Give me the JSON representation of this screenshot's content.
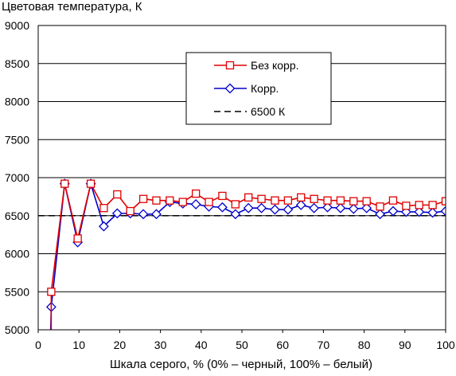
{
  "chart_data": {
    "type": "line",
    "title": "",
    "ylabel": "Цветовая температура, К",
    "xlabel": "Шкала серого, % (0% – черный, 100% – белый)",
    "xlim": [
      0,
      100
    ],
    "ylim": [
      5000,
      9000
    ],
    "x_ticks": [
      0,
      10,
      20,
      30,
      40,
      50,
      60,
      70,
      80,
      90,
      100
    ],
    "y_ticks": [
      5000,
      5500,
      6000,
      6500,
      7000,
      7500,
      8000,
      8500,
      9000
    ],
    "grid": "horizontal",
    "legend_position": "top-right",
    "reference_line": {
      "name": "6500 К",
      "value": 6500,
      "color": "#000000",
      "style": "dashed"
    },
    "series": [
      {
        "name": "Без корр.",
        "color": "#e00000",
        "marker": "square",
        "points": [
          [
            3.2,
            4400
          ],
          [
            3.2,
            5500
          ],
          [
            6.5,
            6920
          ],
          [
            9.7,
            6200
          ],
          [
            12.9,
            6920
          ],
          [
            16.1,
            6600
          ],
          [
            19.4,
            6780
          ],
          [
            22.6,
            6560
          ],
          [
            25.8,
            6720
          ],
          [
            29.0,
            6700
          ],
          [
            32.3,
            6700
          ],
          [
            35.5,
            6680
          ],
          [
            38.7,
            6790
          ],
          [
            41.9,
            6680
          ],
          [
            45.2,
            6760
          ],
          [
            48.4,
            6650
          ],
          [
            51.6,
            6740
          ],
          [
            54.8,
            6720
          ],
          [
            58.1,
            6700
          ],
          [
            61.3,
            6700
          ],
          [
            64.5,
            6740
          ],
          [
            67.7,
            6720
          ],
          [
            71.0,
            6700
          ],
          [
            74.2,
            6700
          ],
          [
            77.4,
            6690
          ],
          [
            80.6,
            6690
          ],
          [
            83.9,
            6620
          ],
          [
            87.1,
            6700
          ],
          [
            90.3,
            6630
          ],
          [
            93.5,
            6640
          ],
          [
            96.8,
            6640
          ],
          [
            100.0,
            6690
          ]
        ]
      },
      {
        "name": "Корр.",
        "color": "#0000cc",
        "marker": "diamond",
        "points": [
          [
            2.8,
            4400
          ],
          [
            3.2,
            5300
          ],
          [
            6.5,
            6920
          ],
          [
            9.7,
            6150
          ],
          [
            12.9,
            6920
          ],
          [
            16.1,
            6360
          ],
          [
            19.4,
            6530
          ],
          [
            22.6,
            6530
          ],
          [
            25.8,
            6520
          ],
          [
            29.0,
            6520
          ],
          [
            32.3,
            6680
          ],
          [
            35.5,
            6660
          ],
          [
            38.7,
            6650
          ],
          [
            41.9,
            6620
          ],
          [
            45.2,
            6610
          ],
          [
            48.4,
            6520
          ],
          [
            51.6,
            6600
          ],
          [
            54.8,
            6600
          ],
          [
            58.1,
            6580
          ],
          [
            61.3,
            6580
          ],
          [
            64.5,
            6640
          ],
          [
            67.7,
            6600
          ],
          [
            71.0,
            6610
          ],
          [
            74.2,
            6600
          ],
          [
            77.4,
            6590
          ],
          [
            80.6,
            6600
          ],
          [
            83.9,
            6520
          ],
          [
            87.1,
            6560
          ],
          [
            90.3,
            6550
          ],
          [
            93.5,
            6550
          ],
          [
            96.8,
            6540
          ],
          [
            100.0,
            6560
          ]
        ]
      }
    ]
  }
}
